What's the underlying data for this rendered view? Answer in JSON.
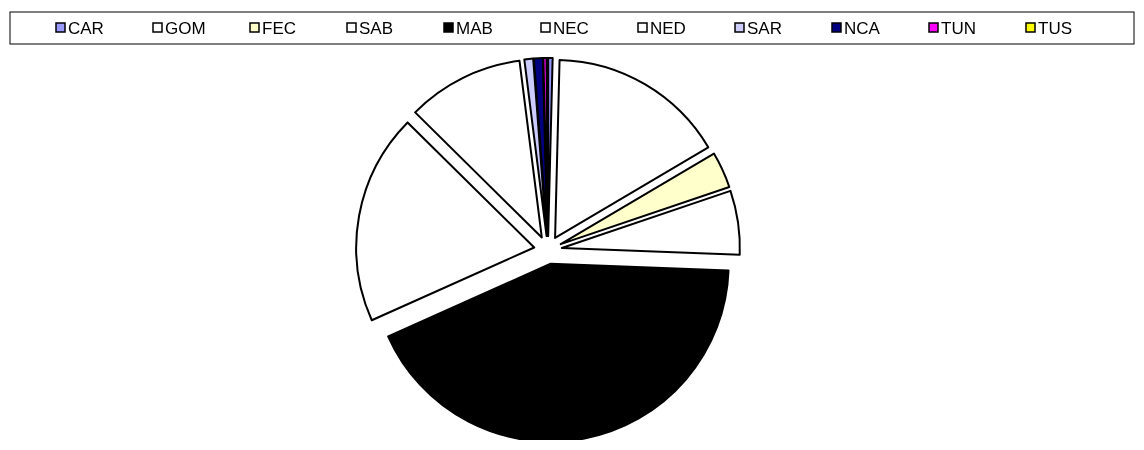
{
  "chart_data": {
    "type": "pie",
    "categories": [
      "CAR",
      "GOM",
      "FEC",
      "SAB",
      "MAB",
      "NEC",
      "NED",
      "SAR",
      "NCA",
      "TUN",
      "TUS"
    ],
    "values": [
      0.4,
      16.1,
      3.3,
      5.8,
      42.7,
      19.1,
      10.6,
      0.8,
      0.8,
      0.3,
      0.1
    ],
    "colors": [
      "#9999ff",
      "#ffffff",
      "#ffffcc",
      "#ffffff",
      "#000000",
      "#ffffff",
      "#ffffff",
      "#ccccff",
      "#000080",
      "#ff00ff",
      "#ffff00"
    ],
    "legend": "top"
  }
}
